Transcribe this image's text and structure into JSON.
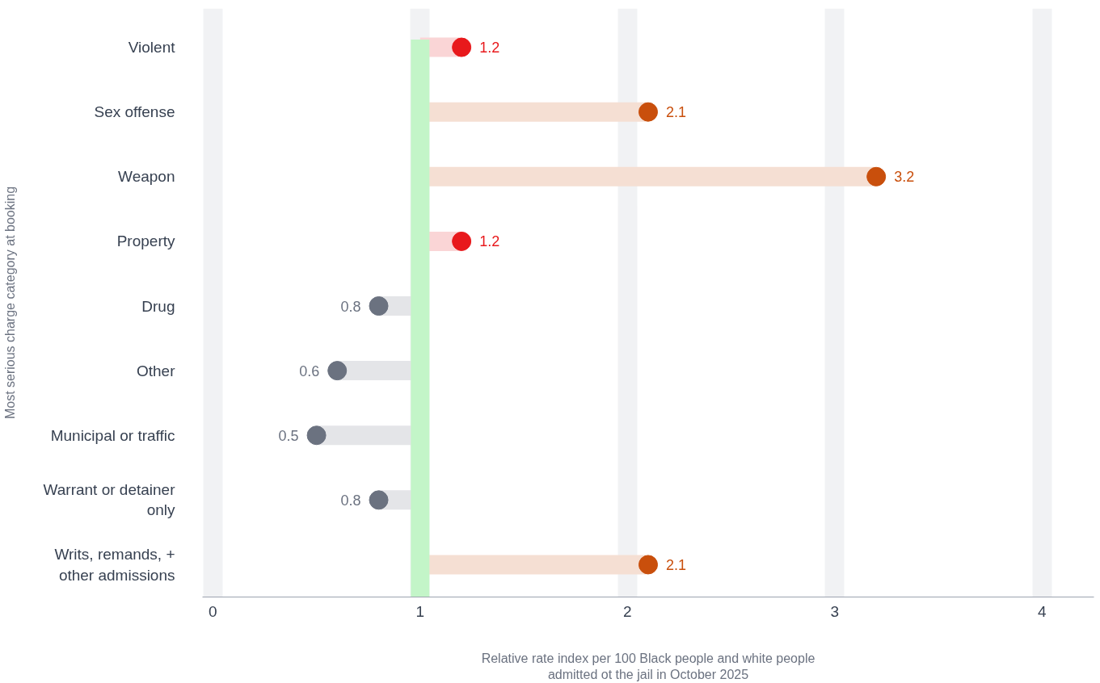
{
  "chart_data": {
    "type": "lollipop",
    "orientation": "horizontal",
    "categories": [
      "Violent",
      "Sex offense",
      "Weapon",
      "Property",
      "Drug",
      "Other",
      "Municipal or traffic",
      "Warrant or detainer\nonly",
      "Writs, remands, +\nother admissions"
    ],
    "values": [
      1.2,
      2.1,
      3.2,
      1.2,
      0.8,
      0.6,
      0.5,
      0.8,
      2.1
    ],
    "colors": [
      "#e8191c",
      "#c94f0c",
      "#c94f0c",
      "#e8191c",
      "#6b7280",
      "#6b7280",
      "#6b7280",
      "#6b7280",
      "#c94f0c"
    ],
    "data_labels": true,
    "xlabel": "Relative rate index per 100 Black people and white people\nadmitted ot the jail in October 2025",
    "ylabel": "Most serious charge category at booking",
    "xlim": [
      -0.05,
      4.25
    ],
    "xticks": [
      0,
      1,
      2,
      3,
      4
    ],
    "grid": "x",
    "ref_lines": [
      {
        "axis": "x",
        "value": 1,
        "label": null,
        "color": "#c3f5c8"
      }
    ]
  }
}
